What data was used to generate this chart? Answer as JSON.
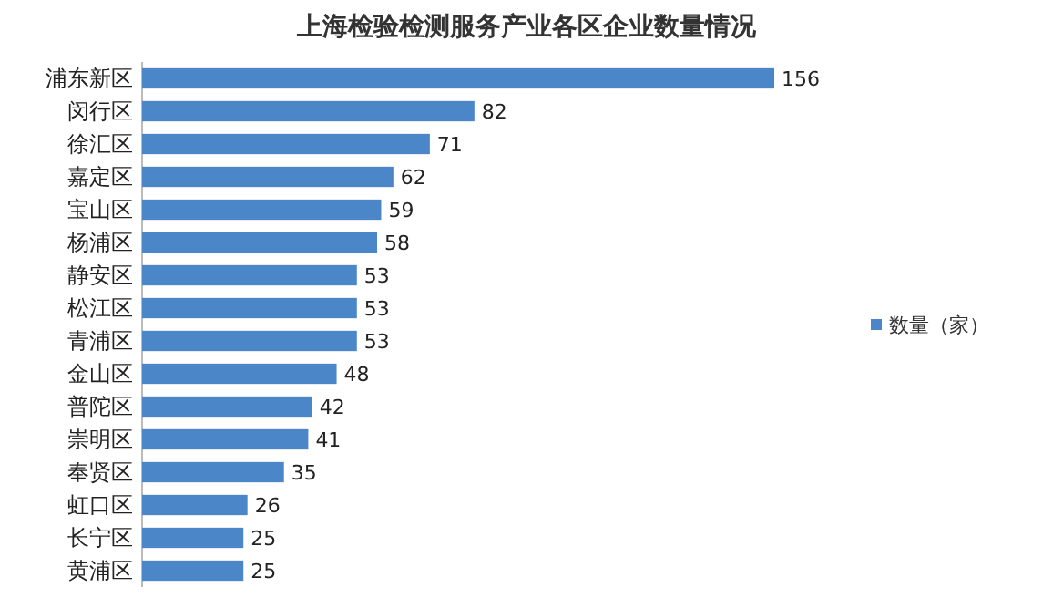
{
  "chart_data": {
    "type": "bar",
    "orientation": "horizontal",
    "title": "上海检验检测服务产业各区企业数量情况",
    "categories": [
      "浦东新区",
      "闵行区",
      "徐汇区",
      "嘉定区",
      "宝山区",
      "杨浦区",
      "静安区",
      "松江区",
      "青浦区",
      "金山区",
      "普陀区",
      "崇明区",
      "奉贤区",
      "虹口区",
      "长宁区",
      "黄浦区"
    ],
    "series": [
      {
        "name": "数量（家）",
        "color": "#4a86c8",
        "values": [
          156,
          82,
          71,
          62,
          59,
          58,
          53,
          53,
          53,
          48,
          42,
          41,
          35,
          26,
          25,
          25
        ]
      }
    ],
    "data_labels": true,
    "legend": "right"
  }
}
